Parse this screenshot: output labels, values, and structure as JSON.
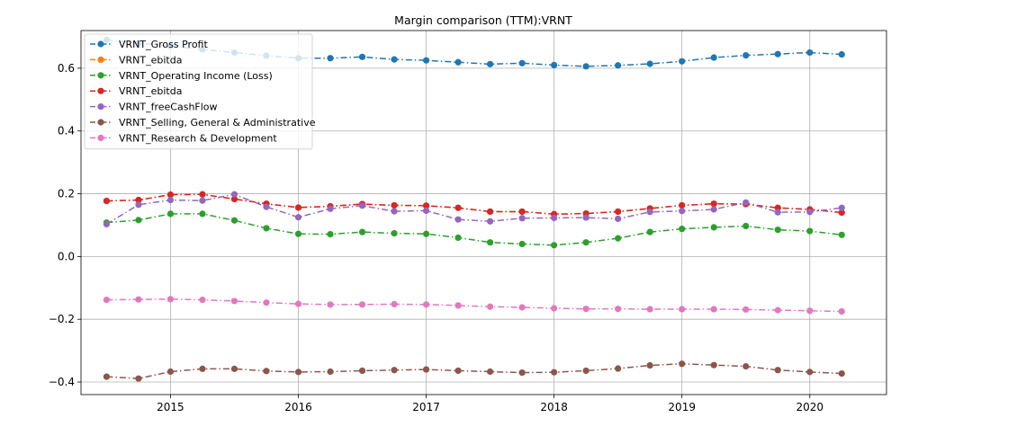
{
  "chart_data": {
    "type": "line",
    "title": "Margin comparison (TTM):VRNT",
    "xlabel": "",
    "ylabel": "",
    "xlim": [
      2014.3,
      2020.6
    ],
    "ylim": [
      -0.44,
      0.72
    ],
    "x_ticks": [
      2015,
      2016,
      2017,
      2018,
      2019,
      2020
    ],
    "y_ticks": [
      -0.4,
      -0.2,
      0.0,
      0.2,
      0.4,
      0.6
    ],
    "y_tick_labels": [
      "−0.4",
      "−0.2",
      "0.0",
      "0.2",
      "0.4",
      "0.6"
    ],
    "grid": true,
    "legend_position": "top-left",
    "x": [
      2014.5,
      2014.75,
      2015.0,
      2015.25,
      2015.5,
      2015.75,
      2016.0,
      2016.25,
      2016.5,
      2016.75,
      2017.0,
      2017.25,
      2017.5,
      2017.75,
      2018.0,
      2018.25,
      2018.5,
      2018.75,
      2019.0,
      2019.25,
      2019.5,
      2019.75,
      2020.0,
      2020.25
    ],
    "series": [
      {
        "name": "VRNT_Gross Profit",
        "color": "#1f77b4",
        "values": [
          0.69,
          0.68,
          0.67,
          0.66,
          0.65,
          0.64,
          0.632,
          0.632,
          0.636,
          0.628,
          0.625,
          0.619,
          0.613,
          0.616,
          0.61,
          0.606,
          0.609,
          0.614,
          0.622,
          0.634,
          0.641,
          0.645,
          0.65,
          0.644
        ]
      },
      {
        "name": "VRNT_ebitda",
        "color": "#ff7f0e",
        "values": [
          0.177,
          0.18,
          0.197,
          0.198,
          0.183,
          0.168,
          0.156,
          0.16,
          0.167,
          0.163,
          0.162,
          0.155,
          0.143,
          0.143,
          0.135,
          0.137,
          0.143,
          0.153,
          0.163,
          0.168,
          0.167,
          0.155,
          0.15,
          0.14
        ]
      },
      {
        "name": "VRNT_Operating Income (Loss)",
        "color": "#2ca02c",
        "values": [
          0.108,
          0.116,
          0.136,
          0.136,
          0.115,
          0.09,
          0.072,
          0.071,
          0.078,
          0.074,
          0.072,
          0.06,
          0.045,
          0.04,
          0.036,
          0.045,
          0.058,
          0.078,
          0.088,
          0.093,
          0.097,
          0.085,
          0.081,
          0.069
        ]
      },
      {
        "name": "VRNT_ebitda",
        "color": "#d62728",
        "values": [
          0.177,
          0.18,
          0.197,
          0.198,
          0.183,
          0.168,
          0.156,
          0.16,
          0.167,
          0.163,
          0.162,
          0.155,
          0.143,
          0.143,
          0.135,
          0.137,
          0.143,
          0.153,
          0.163,
          0.168,
          0.167,
          0.155,
          0.15,
          0.14
        ]
      },
      {
        "name": "VRNT_freeCashFlow",
        "color": "#9467bd",
        "values": [
          0.103,
          0.165,
          0.18,
          0.178,
          0.198,
          0.158,
          0.125,
          0.152,
          0.162,
          0.144,
          0.146,
          0.118,
          0.112,
          0.122,
          0.123,
          0.124,
          0.12,
          0.142,
          0.145,
          0.15,
          0.172,
          0.141,
          0.142,
          0.155
        ]
      },
      {
        "name": "VRNT_Selling, General & Administrative",
        "color": "#8c564b",
        "values": [
          -0.383,
          -0.389,
          -0.367,
          -0.358,
          -0.358,
          -0.365,
          -0.368,
          -0.367,
          -0.364,
          -0.362,
          -0.36,
          -0.364,
          -0.367,
          -0.37,
          -0.369,
          -0.364,
          -0.357,
          -0.347,
          -0.342,
          -0.346,
          -0.35,
          -0.362,
          -0.368,
          -0.373
        ]
      },
      {
        "name": "VRNT_Research & Development",
        "color": "#e377c2",
        "values": [
          -0.138,
          -0.137,
          -0.136,
          -0.138,
          -0.142,
          -0.147,
          -0.151,
          -0.153,
          -0.153,
          -0.152,
          -0.153,
          -0.156,
          -0.16,
          -0.162,
          -0.165,
          -0.167,
          -0.167,
          -0.168,
          -0.168,
          -0.168,
          -0.169,
          -0.171,
          -0.173,
          -0.175
        ]
      }
    ]
  }
}
